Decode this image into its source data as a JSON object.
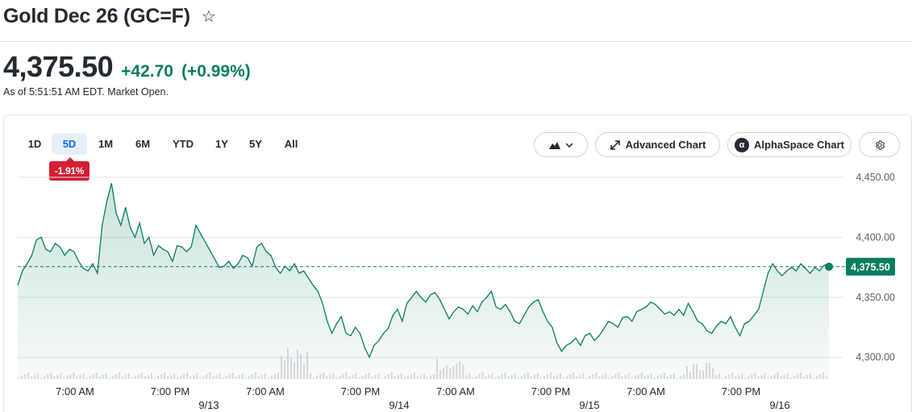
{
  "header": {
    "title": "Gold Dec 26 (GC=F)",
    "star_icon": "star-outline-icon"
  },
  "quote": {
    "price": "4,375.50",
    "change": "+42.70",
    "change_pct": "(+0.99%)",
    "as_of": "As of 5:51:51 AM EDT. Market Open.",
    "color_up": "#0a7d5f",
    "color_down": "#d41e33"
  },
  "ranges": {
    "items": [
      "1D",
      "5D",
      "1M",
      "6M",
      "YTD",
      "1Y",
      "5Y",
      "All"
    ],
    "selected": "5D",
    "period_change": "-1.91%"
  },
  "toolbar": {
    "chart_type_icon": "mountain-chart-icon",
    "dropdown_icon": "chevron-down-icon",
    "advanced_label": "Advanced Chart",
    "advanced_icon": "expand-arrows-icon",
    "alpha_label": "AlphaSpace Chart",
    "alpha_icon": "alpha-logo-icon",
    "settings_icon": "gear-icon"
  },
  "chart_data": {
    "type": "area",
    "y_ticks": [
      "4,450.00",
      "4,400.00",
      "4,350.00",
      "4,300.00"
    ],
    "y_tick_values": [
      4450,
      4400,
      4350,
      4300
    ],
    "ylim": [
      4282,
      4460
    ],
    "x_time_labels": [
      "7:00 AM",
      "7:00 PM",
      "7:00 AM",
      "7:00 PM",
      "7:00 AM",
      "7:00 PM",
      "7:00 AM",
      "7:00 PM"
    ],
    "x_date_labels": [
      "9/13",
      "9/14",
      "9/15",
      "9/16"
    ],
    "last_price_label": "4,375.50",
    "last_price": 4375.5,
    "series": [
      {
        "values": [
          4360,
          4372,
          4378,
          4385,
          4398,
          4400,
          4390,
          4388,
          4395,
          4392,
          4385,
          4390,
          4388,
          4380,
          4374,
          4372,
          4378,
          4370,
          4410,
          4430,
          4445,
          4420,
          4410,
          4425,
          4408,
          4400,
          4412,
          4395,
          4400,
          4385,
          4393,
          4390,
          4388,
          4380,
          4393,
          4392,
          4388,
          4392,
          4410,
          4403,
          4396,
          4389,
          4382,
          4375,
          4376,
          4380,
          4374,
          4378,
          4385,
          4383,
          4376,
          4392,
          4395,
          4388,
          4385,
          4375,
          4370,
          4376,
          4372,
          4378,
          4370,
          4372,
          4366,
          4360,
          4355,
          4345,
          4330,
          4320,
          4328,
          4334,
          4320,
          4318,
          4325,
          4320,
          4308,
          4300,
          4310,
          4314,
          4320,
          4324,
          4335,
          4340,
          4330,
          4345,
          4350,
          4355,
          4350,
          4346,
          4352,
          4354,
          4348,
          4340,
          4332,
          4338,
          4342,
          4340,
          4336,
          4343,
          4338,
          4346,
          4350,
          4355,
          4342,
          4340,
          4344,
          4338,
          4330,
          4328,
          4335,
          4342,
          4346,
          4348,
          4338,
          4330,
          4325,
          4312,
          4305,
          4310,
          4312,
          4316,
          4310,
          4318,
          4320,
          4314,
          4318,
          4324,
          4330,
          4328,
          4325,
          4333,
          4334,
          4330,
          4338,
          4340,
          4342,
          4346,
          4344,
          4340,
          4336,
          4338,
          4335,
          4340,
          4335,
          4345,
          4338,
          4330,
          4328,
          4322,
          4320,
          4326,
          4330,
          4328,
          4334,
          4325,
          4318,
          4328,
          4330,
          4335,
          4340,
          4355,
          4370,
          4378,
          4372,
          4368,
          4372,
          4375,
          4372,
          4378,
          4374,
          4370,
          4375,
          4372,
          4377,
          4375.5
        ]
      }
    ]
  }
}
